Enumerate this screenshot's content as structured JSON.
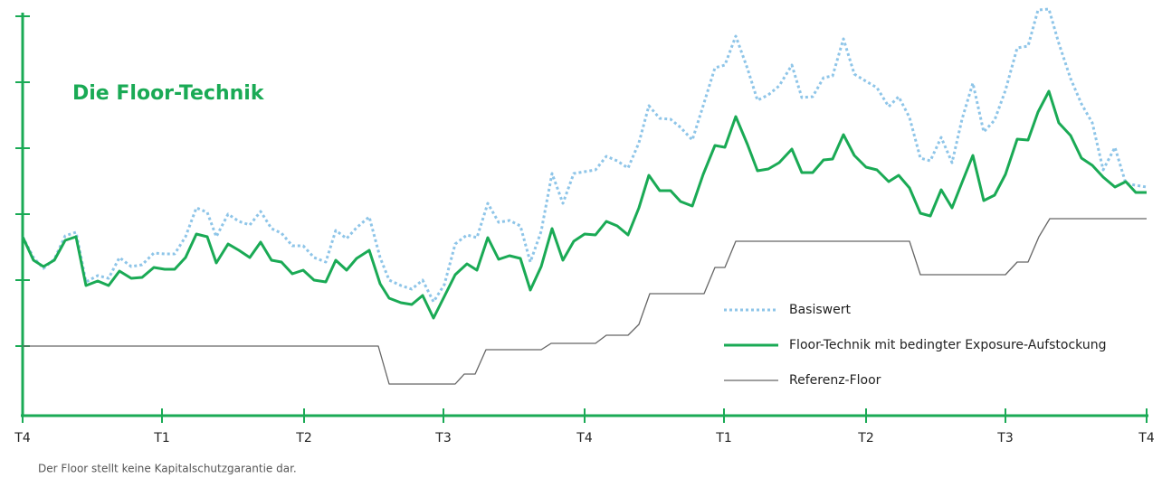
{
  "chart_data": {
    "type": "line",
    "title": "Die Floor-Technik",
    "footnote": "Der Floor stellt keine Kapitalschutzgarantie dar.",
    "xlim": [
      0,
      1242
    ],
    "xticks": [
      {
        "value": 0,
        "label": "T4"
      },
      {
        "value": 154,
        "label": "T1"
      },
      {
        "value": 311,
        "label": "T2"
      },
      {
        "value": 465,
        "label": "T3"
      },
      {
        "value": 621,
        "label": "T4"
      },
      {
        "value": 775,
        "label": "T1"
      },
      {
        "value": 932,
        "label": "T2"
      },
      {
        "value": 1086,
        "label": "T3"
      },
      {
        "value": 1242,
        "label": "T4"
      }
    ],
    "ylim": [
      0,
      450
    ],
    "yticks": [
      77,
      150,
      223,
      296,
      369,
      442
    ],
    "legend": "lower right",
    "axis_color": "#1aaa55",
    "x": [
      0,
      12,
      23,
      35,
      47,
      59,
      70,
      83,
      95,
      107,
      120,
      132,
      145,
      157,
      168,
      180,
      192,
      204,
      214,
      227,
      239,
      251,
      263,
      275,
      286,
      298,
      310,
      322,
      335,
      346,
      358,
      369,
      383,
      395,
      405,
      418,
      430,
      442,
      454,
      466,
      478,
      491,
      502,
      514,
      526,
      538,
      550,
      561,
      573,
      585,
      597,
      609,
      621,
      633,
      645,
      657,
      669,
      681,
      692,
      704,
      716,
      727,
      740,
      752,
      765,
      776,
      788,
      801,
      812,
      824,
      836,
      850,
      861,
      873,
      885,
      895,
      907,
      919,
      932,
      944,
      957,
      968,
      980,
      992,
      1003,
      1015,
      1027,
      1038,
      1050,
      1062,
      1074,
      1086,
      1099,
      1111,
      1122,
      1134,
      1145,
      1158,
      1170,
      1182,
      1194,
      1207,
      1219,
      1230,
      1242
    ],
    "series": [
      {
        "name": "Basiswert",
        "color": "#8ec5e8",
        "style": "dotted",
        "values": [
          198,
          175,
          163,
          173,
          199,
          203,
          148,
          155,
          152,
          175,
          165,
          167,
          180,
          179,
          179,
          198,
          230,
          225,
          198,
          223,
          215,
          211,
          226,
          207,
          202,
          188,
          188,
          175,
          170,
          205,
          196,
          208,
          220,
          175,
          150,
          144,
          140,
          150,
          126,
          145,
          190,
          200,
          197,
          235,
          214,
          216,
          210,
          170,
          204,
          268,
          235,
          268,
          270,
          272,
          287,
          282,
          274,
          302,
          343,
          329,
          328,
          319,
          305,
          343,
          385,
          388,
          420,
          384,
          349,
          355,
          365,
          388,
          352,
          353,
          374,
          376,
          417,
          378,
          370,
          363,
          342,
          353,
          330,
          285,
          282,
          308,
          280,
          328,
          368,
          314,
          327,
          360,
          407,
          409,
          449,
          450,
          412,
          373,
          345,
          324,
          272,
          297,
          257,
          255,
          253
        ]
      },
      {
        "name": "Floor-Technik mit bedingter Exposure-Aufstockung",
        "color": "#1aaa55",
        "style": "solid",
        "values": [
          198,
          172,
          165,
          172,
          194,
          198,
          144,
          149,
          144,
          160,
          152,
          153,
          164,
          162,
          162,
          175,
          201,
          198,
          169,
          190,
          183,
          175,
          192,
          172,
          170,
          157,
          161,
          150,
          148,
          172,
          161,
          174,
          183,
          146,
          130,
          125,
          123,
          133,
          108,
          132,
          156,
          168,
          161,
          197,
          173,
          177,
          174,
          139,
          165,
          207,
          172,
          193,
          201,
          200,
          215,
          210,
          200,
          230,
          266,
          249,
          249,
          237,
          232,
          267,
          299,
          297,
          331,
          300,
          271,
          273,
          280,
          295,
          269,
          269,
          283,
          284,
          311,
          288,
          275,
          272,
          259,
          266,
          252,
          224,
          221,
          250,
          230,
          258,
          288,
          238,
          244,
          267,
          306,
          305,
          336,
          359,
          324,
          310,
          285,
          277,
          264,
          253,
          259,
          247,
          247
        ]
      },
      {
        "name": "Referenz-Floor",
        "color": "#666666",
        "style": "thin",
        "x": [
          0,
          393,
          405,
          478,
          488,
          500,
          512,
          573,
          584,
          633,
          645,
          669,
          681,
          693,
          753,
          765,
          776,
          788,
          980,
          992,
          1086,
          1099,
          1111,
          1123,
          1135,
          1242
        ],
        "values": [
          77,
          77,
          35,
          35,
          46,
          46,
          73,
          73,
          80,
          80,
          89,
          89,
          101,
          135,
          135,
          164,
          164,
          193,
          193,
          156,
          156,
          170,
          170,
          198,
          218,
          218
        ]
      }
    ]
  }
}
